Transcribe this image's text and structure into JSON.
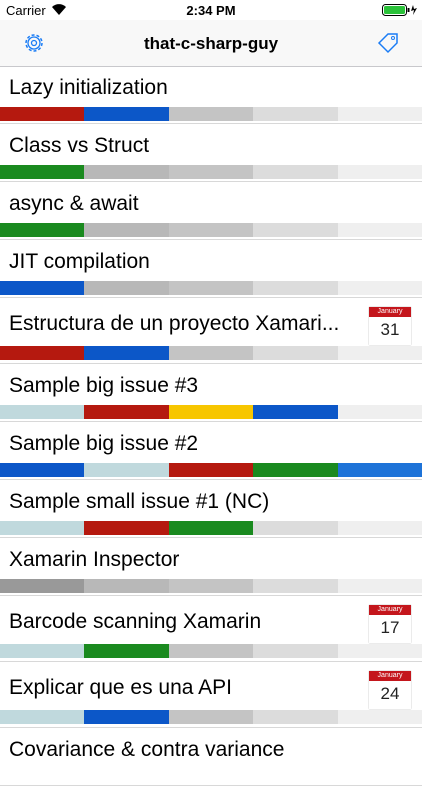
{
  "status_bar": {
    "carrier": "Carrier",
    "time": "2:34 PM"
  },
  "nav_bar": {
    "title": "that-c-sharp-guy"
  },
  "items": [
    {
      "title": "Lazy initialization",
      "segments": [
        "#b5190f",
        "#0c57c8",
        "#c4c4c4",
        "#dcdcdc",
        "#efefef"
      ]
    },
    {
      "title": "Class vs Struct",
      "segments": [
        "#1a8a1f",
        "#b8b8b8",
        "#c4c4c4",
        "#dcdcdc",
        "#efefef"
      ]
    },
    {
      "title": "async & await",
      "segments": [
        "#1a8a1f",
        "#b8b8b8",
        "#c4c4c4",
        "#dcdcdc",
        "#efefef"
      ]
    },
    {
      "title": "JIT compilation",
      "segments": [
        "#0c57c8",
        "#b8b8b8",
        "#c4c4c4",
        "#dcdcdc",
        "#efefef"
      ]
    },
    {
      "title": "Estructura de un proyecto Xamari...",
      "segments": [
        "#b5190f",
        "#0c57c8",
        "#c4c4c4",
        "#dcdcdc",
        "#efefef"
      ],
      "calendar": {
        "month": "January",
        "day": "31"
      }
    },
    {
      "title": "Sample big issue #3",
      "segments": [
        "#c0d9dd",
        "#b5190f",
        "#f7c600",
        "#0c57c8",
        "#efefef"
      ]
    },
    {
      "title": "Sample big issue #2",
      "segments": [
        "#0c57c8",
        "#c0d9dd",
        "#b5190f",
        "#1a8a1f",
        "#1e73d8"
      ]
    },
    {
      "title": "Sample small issue #1 (NC)",
      "segments": [
        "#c0d9dd",
        "#b5190f",
        "#1a8a1f",
        "#dcdcdc",
        "#efefef"
      ]
    },
    {
      "title": "Xamarin Inspector",
      "segments": [
        "#999999",
        "#b8b8b8",
        "#c4c4c4",
        "#dcdcdc",
        "#efefef"
      ]
    },
    {
      "title": "Barcode scanning Xamarin",
      "segments": [
        "#c0d9dd",
        "#1a8a1f",
        "#c4c4c4",
        "#dcdcdc",
        "#efefef"
      ],
      "calendar": {
        "month": "January",
        "day": "17"
      }
    },
    {
      "title": "Explicar que es una API",
      "segments": [
        "#c0d9dd",
        "#0c57c8",
        "#c4c4c4",
        "#dcdcdc",
        "#efefef"
      ],
      "calendar": {
        "month": "January",
        "day": "24"
      }
    },
    {
      "title": "Covariance & contra variance"
    }
  ]
}
